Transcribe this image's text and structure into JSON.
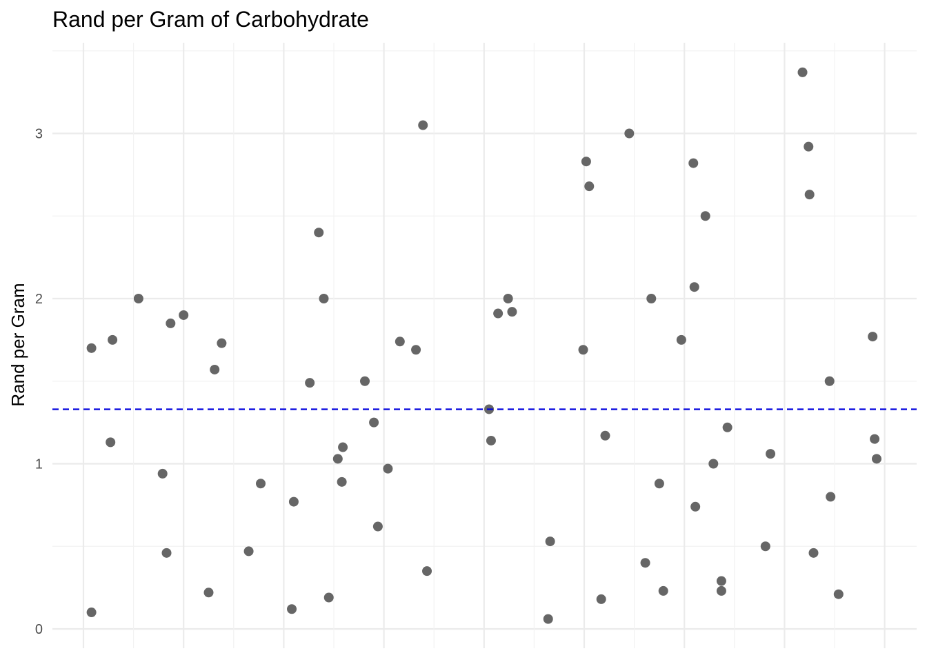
{
  "chart_data": {
    "type": "scatter",
    "title": "Rand per Gram of Carbohydrate",
    "xlabel": "",
    "ylabel": "Rand per Gram",
    "ylim": [
      -0.05,
      3.5
    ],
    "y_ticks": [
      0,
      1,
      2,
      3
    ],
    "y_tick_labels": [
      "0",
      "1",
      "2",
      "3"
    ],
    "x_ticks_labeled": false,
    "grid": true,
    "reference_line": {
      "y": 1.33,
      "style": "dashed",
      "color": "#0000dd"
    },
    "point_color": "#666666",
    "points": [
      {
        "x": 0.08,
        "y": 0.1
      },
      {
        "x": 0.08,
        "y": 1.7
      },
      {
        "x": 0.27,
        "y": 1.13
      },
      {
        "x": 0.29,
        "y": 1.75
      },
      {
        "x": 0.55,
        "y": 2.0
      },
      {
        "x": 0.79,
        "y": 0.94
      },
      {
        "x": 0.83,
        "y": 0.46
      },
      {
        "x": 0.87,
        "y": 1.85
      },
      {
        "x": 1.0,
        "y": 1.9
      },
      {
        "x": 1.25,
        "y": 0.22
      },
      {
        "x": 1.31,
        "y": 1.57
      },
      {
        "x": 1.38,
        "y": 1.73
      },
      {
        "x": 1.65,
        "y": 0.47
      },
      {
        "x": 1.77,
        "y": 0.88
      },
      {
        "x": 2.08,
        "y": 0.12
      },
      {
        "x": 2.1,
        "y": 0.77
      },
      {
        "x": 2.26,
        "y": 1.49
      },
      {
        "x": 2.35,
        "y": 2.4
      },
      {
        "x": 2.4,
        "y": 2.0
      },
      {
        "x": 2.45,
        "y": 0.19
      },
      {
        "x": 2.54,
        "y": 1.03
      },
      {
        "x": 2.58,
        "y": 0.89
      },
      {
        "x": 2.59,
        "y": 1.1
      },
      {
        "x": 2.81,
        "y": 1.5
      },
      {
        "x": 2.9,
        "y": 1.25
      },
      {
        "x": 2.94,
        "y": 0.62
      },
      {
        "x": 3.04,
        "y": 0.97
      },
      {
        "x": 3.16,
        "y": 1.74
      },
      {
        "x": 3.32,
        "y": 1.69
      },
      {
        "x": 3.39,
        "y": 3.05
      },
      {
        "x": 3.43,
        "y": 0.35
      },
      {
        "x": 4.05,
        "y": 1.33
      },
      {
        "x": 4.07,
        "y": 1.14
      },
      {
        "x": 4.14,
        "y": 1.91
      },
      {
        "x": 4.24,
        "y": 2.0
      },
      {
        "x": 4.28,
        "y": 1.92
      },
      {
        "x": 4.64,
        "y": 0.06
      },
      {
        "x": 4.66,
        "y": 0.53
      },
      {
        "x": 4.99,
        "y": 1.69
      },
      {
        "x": 5.02,
        "y": 2.83
      },
      {
        "x": 5.05,
        "y": 2.68
      },
      {
        "x": 5.17,
        "y": 0.18
      },
      {
        "x": 5.21,
        "y": 1.17
      },
      {
        "x": 5.45,
        "y": 3.0
      },
      {
        "x": 5.61,
        "y": 0.4
      },
      {
        "x": 5.67,
        "y": 2.0
      },
      {
        "x": 5.75,
        "y": 0.88
      },
      {
        "x": 5.79,
        "y": 0.23
      },
      {
        "x": 5.97,
        "y": 1.75
      },
      {
        "x": 6.09,
        "y": 2.82
      },
      {
        "x": 6.1,
        "y": 2.07
      },
      {
        "x": 6.11,
        "y": 0.74
      },
      {
        "x": 6.21,
        "y": 2.5
      },
      {
        "x": 6.29,
        "y": 1.0
      },
      {
        "x": 6.37,
        "y": 0.29
      },
      {
        "x": 6.37,
        "y": 0.23
      },
      {
        "x": 6.43,
        "y": 1.22
      },
      {
        "x": 6.81,
        "y": 0.5
      },
      {
        "x": 6.86,
        "y": 1.06
      },
      {
        "x": 7.18,
        "y": 3.37
      },
      {
        "x": 7.24,
        "y": 2.92
      },
      {
        "x": 7.25,
        "y": 2.63
      },
      {
        "x": 7.29,
        "y": 0.46
      },
      {
        "x": 7.45,
        "y": 1.5
      },
      {
        "x": 7.46,
        "y": 0.8
      },
      {
        "x": 7.54,
        "y": 0.21
      },
      {
        "x": 7.88,
        "y": 1.77
      },
      {
        "x": 7.9,
        "y": 1.15
      },
      {
        "x": 7.92,
        "y": 1.03
      }
    ]
  }
}
